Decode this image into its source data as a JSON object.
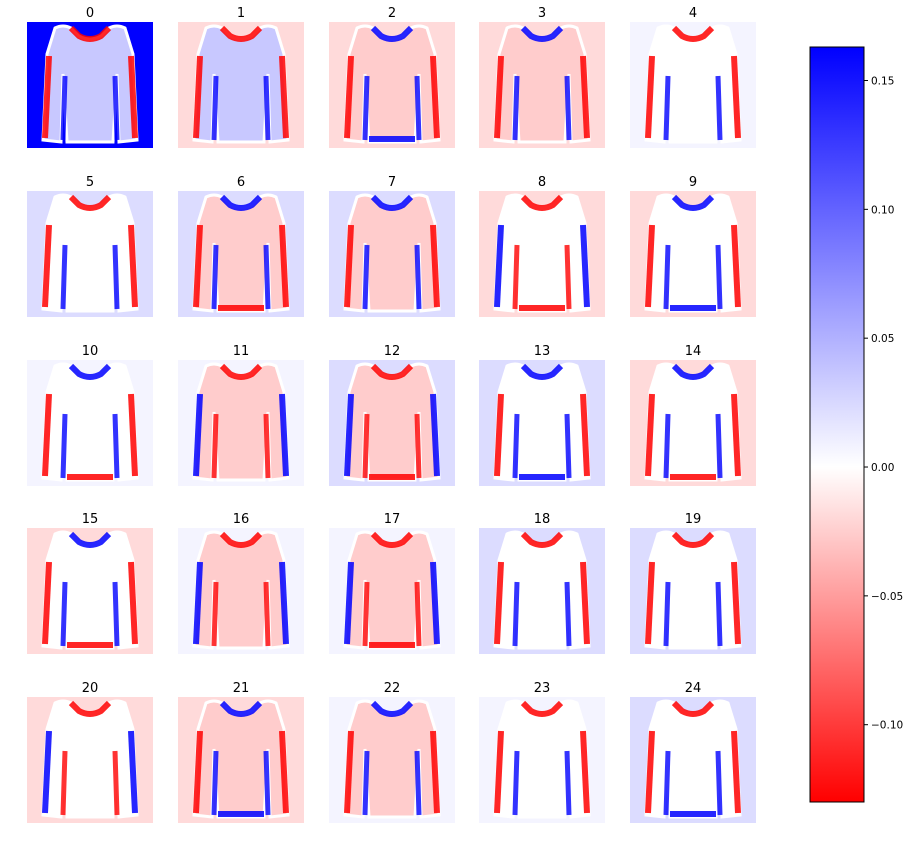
{
  "chart_data": {
    "type": "heatmap",
    "panels": [
      {
        "label": "0"
      },
      {
        "label": "1"
      },
      {
        "label": "2"
      },
      {
        "label": "3"
      },
      {
        "label": "4"
      },
      {
        "label": "5"
      },
      {
        "label": "6"
      },
      {
        "label": "7"
      },
      {
        "label": "8"
      },
      {
        "label": "9"
      },
      {
        "label": "10"
      },
      {
        "label": "11"
      },
      {
        "label": "12"
      },
      {
        "label": "13"
      },
      {
        "label": "14"
      },
      {
        "label": "15"
      },
      {
        "label": "16"
      },
      {
        "label": "17"
      },
      {
        "label": "18"
      },
      {
        "label": "19"
      },
      {
        "label": "20"
      },
      {
        "label": "21"
      },
      {
        "label": "22"
      },
      {
        "label": "23"
      },
      {
        "label": "24"
      }
    ],
    "grid": {
      "rows": 5,
      "cols": 5
    },
    "colormap": "bwr_r",
    "colorbar": {
      "min": -0.13,
      "max": 0.163,
      "ticks": [
        {
          "value": 0.15,
          "label": "0.15"
        },
        {
          "value": 0.1,
          "label": "0.10"
        },
        {
          "value": 0.05,
          "label": "0.05"
        },
        {
          "value": 0.0,
          "label": "0.00"
        },
        {
          "value": -0.05,
          "label": "−0.05"
        },
        {
          "value": -0.1,
          "label": "−0.10"
        }
      ]
    },
    "colors": {
      "positive": "#0000ff",
      "neutral": "#ffffff",
      "negative": "#ff0000"
    }
  }
}
